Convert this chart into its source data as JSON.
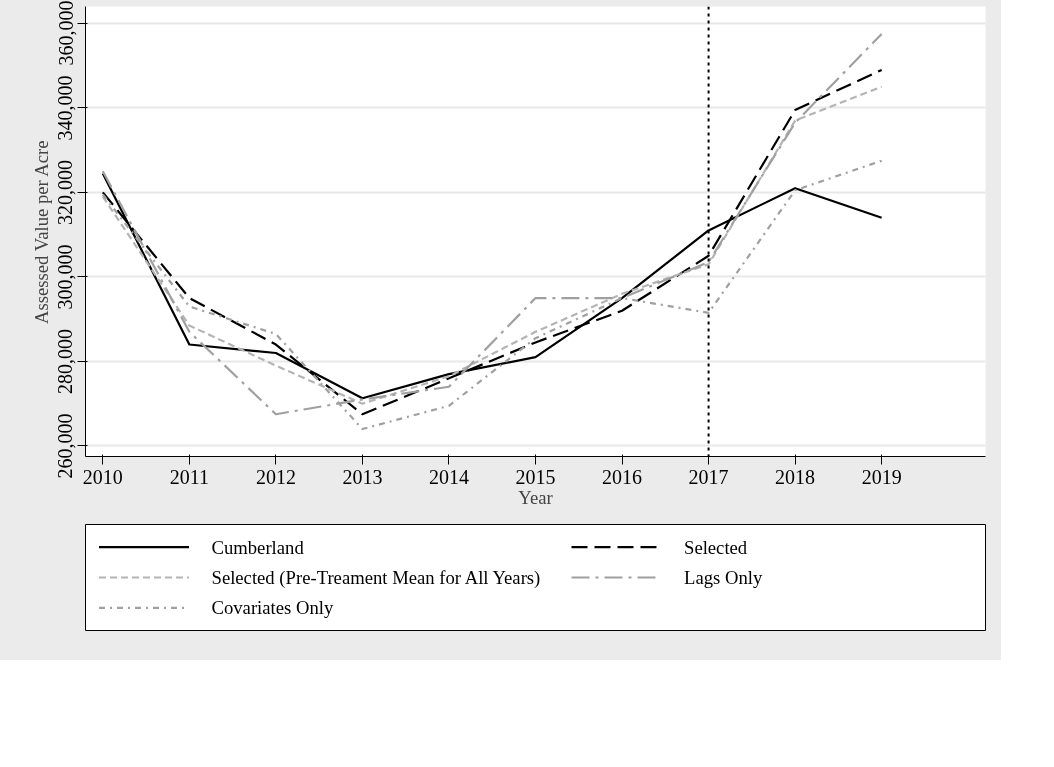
{
  "chart_data": {
    "type": "line",
    "xlabel": "Year",
    "ylabel": "Assessed Value per Acre",
    "x": [
      2010,
      2011,
      2012,
      2013,
      2014,
      2015,
      2016,
      2017,
      2018,
      2019
    ],
    "xlim": [
      2009.8,
      2020.2
    ],
    "xticks": [
      2010,
      2011,
      2012,
      2013,
      2014,
      2015,
      2016,
      2017,
      2018,
      2019
    ],
    "ylim": [
      257500,
      364000
    ],
    "yticks": [
      {
        "value": 260000,
        "label": "260,000"
      },
      {
        "value": 280000,
        "label": "280,000"
      },
      {
        "value": 300000,
        "label": "300,000"
      },
      {
        "value": 320000,
        "label": "320,000"
      },
      {
        "value": 340000,
        "label": "340,000"
      },
      {
        "value": 360000,
        "label": "360,000"
      }
    ],
    "grid": "y",
    "legend": "bottom",
    "marker": "none",
    "ref_lines": [
      {
        "axis": "x",
        "value": 2017,
        "color": "#000000",
        "line_style": "dotted"
      }
    ],
    "series": [
      {
        "name": "Cumberland",
        "color": "#000000",
        "line_style": "solid",
        "values": [
          324500,
          284000,
          282000,
          271300,
          277000,
          281000,
          295000,
          311000,
          321000,
          314000
        ]
      },
      {
        "name": "Selected",
        "color": "#000000",
        "line_style": "longdash",
        "values": [
          320000,
          295000,
          284000,
          267500,
          276000,
          284500,
          292000,
          305000,
          339500,
          349000
        ]
      },
      {
        "name": "Selected (Pre-Treament Mean for All Years)",
        "color": "#b4b4b4",
        "line_style": "dashed",
        "values": [
          319000,
          288500,
          279000,
          270000,
          276500,
          287000,
          296000,
          303000,
          337000,
          345000
        ]
      },
      {
        "name": "Lags Only",
        "color": "#a0a0a0",
        "line_style": "dashdot",
        "values": [
          325000,
          287000,
          267500,
          271000,
          274000,
          295000,
          295000,
          303500,
          336500,
          357500
        ]
      },
      {
        "name": "Covariates Only",
        "color": "#a0a0a0",
        "line_style": "dotdash",
        "values": [
          319500,
          293000,
          286500,
          264000,
          269500,
          285500,
          295000,
          291500,
          320500,
          327500
        ]
      }
    ]
  }
}
